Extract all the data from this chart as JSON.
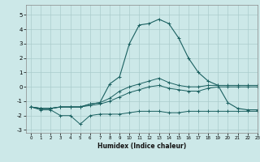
{
  "xlabel": "Humidex (Indice chaleur)",
  "bg_color": "#cce8e8",
  "grid_color": "#aacccc",
  "line_color": "#1a6060",
  "xlim": [
    -0.5,
    23
  ],
  "ylim": [
    -3.2,
    5.7
  ],
  "xticks": [
    0,
    1,
    2,
    3,
    4,
    5,
    6,
    7,
    8,
    9,
    10,
    11,
    12,
    13,
    14,
    15,
    16,
    17,
    18,
    19,
    20,
    21,
    22,
    23
  ],
  "yticks": [
    -3,
    -2,
    -1,
    0,
    1,
    2,
    3,
    4,
    5
  ],
  "curve1_x": [
    0,
    1,
    2,
    3,
    4,
    5,
    6,
    7,
    8,
    9,
    10,
    11,
    12,
    13,
    14,
    15,
    16,
    17,
    18,
    19,
    20,
    21,
    22,
    23
  ],
  "curve1_y": [
    -1.4,
    -1.6,
    -1.6,
    -2.0,
    -2.0,
    -2.6,
    -2.0,
    -1.9,
    -1.9,
    -1.9,
    -1.8,
    -1.7,
    -1.7,
    -1.7,
    -1.8,
    -1.8,
    -1.7,
    -1.7,
    -1.7,
    -1.7,
    -1.7,
    -1.7,
    -1.7,
    -1.7
  ],
  "curve2_x": [
    0,
    1,
    2,
    3,
    4,
    5,
    6,
    7,
    8,
    9,
    10,
    11,
    12,
    13,
    14,
    15,
    16,
    17,
    18,
    19,
    20,
    21,
    22,
    23
  ],
  "curve2_y": [
    -1.4,
    -1.5,
    -1.5,
    -1.4,
    -1.4,
    -1.4,
    -1.3,
    -1.2,
    -1.0,
    -0.7,
    -0.4,
    -0.2,
    0.0,
    0.1,
    -0.1,
    -0.2,
    -0.3,
    -0.3,
    -0.1,
    -0.0,
    0.0,
    0.0,
    0.0,
    0.0
  ],
  "curve3_x": [
    0,
    1,
    2,
    3,
    4,
    5,
    6,
    7,
    8,
    9,
    10,
    11,
    12,
    13,
    14,
    15,
    16,
    17,
    18,
    19,
    20,
    21,
    22,
    23
  ],
  "curve3_y": [
    -1.4,
    -1.5,
    -1.5,
    -1.4,
    -1.4,
    -1.4,
    -1.2,
    -1.1,
    -0.8,
    -0.3,
    0.0,
    0.2,
    0.4,
    0.6,
    0.3,
    0.1,
    0.0,
    -0.0,
    0.1,
    0.1,
    0.1,
    0.1,
    0.1,
    0.1
  ],
  "curve4_x": [
    0,
    1,
    2,
    3,
    4,
    5,
    6,
    7,
    8,
    9,
    10,
    11,
    12,
    13,
    14,
    15,
    16,
    17,
    18,
    19,
    20,
    21,
    22,
    23
  ],
  "curve4_y": [
    -1.4,
    -1.5,
    -1.5,
    -1.4,
    -1.4,
    -1.4,
    -1.2,
    -1.1,
    0.2,
    0.7,
    3.0,
    4.3,
    4.4,
    4.7,
    4.4,
    3.4,
    2.0,
    1.0,
    0.4,
    0.1,
    -1.1,
    -1.5,
    -1.6,
    -1.6
  ]
}
